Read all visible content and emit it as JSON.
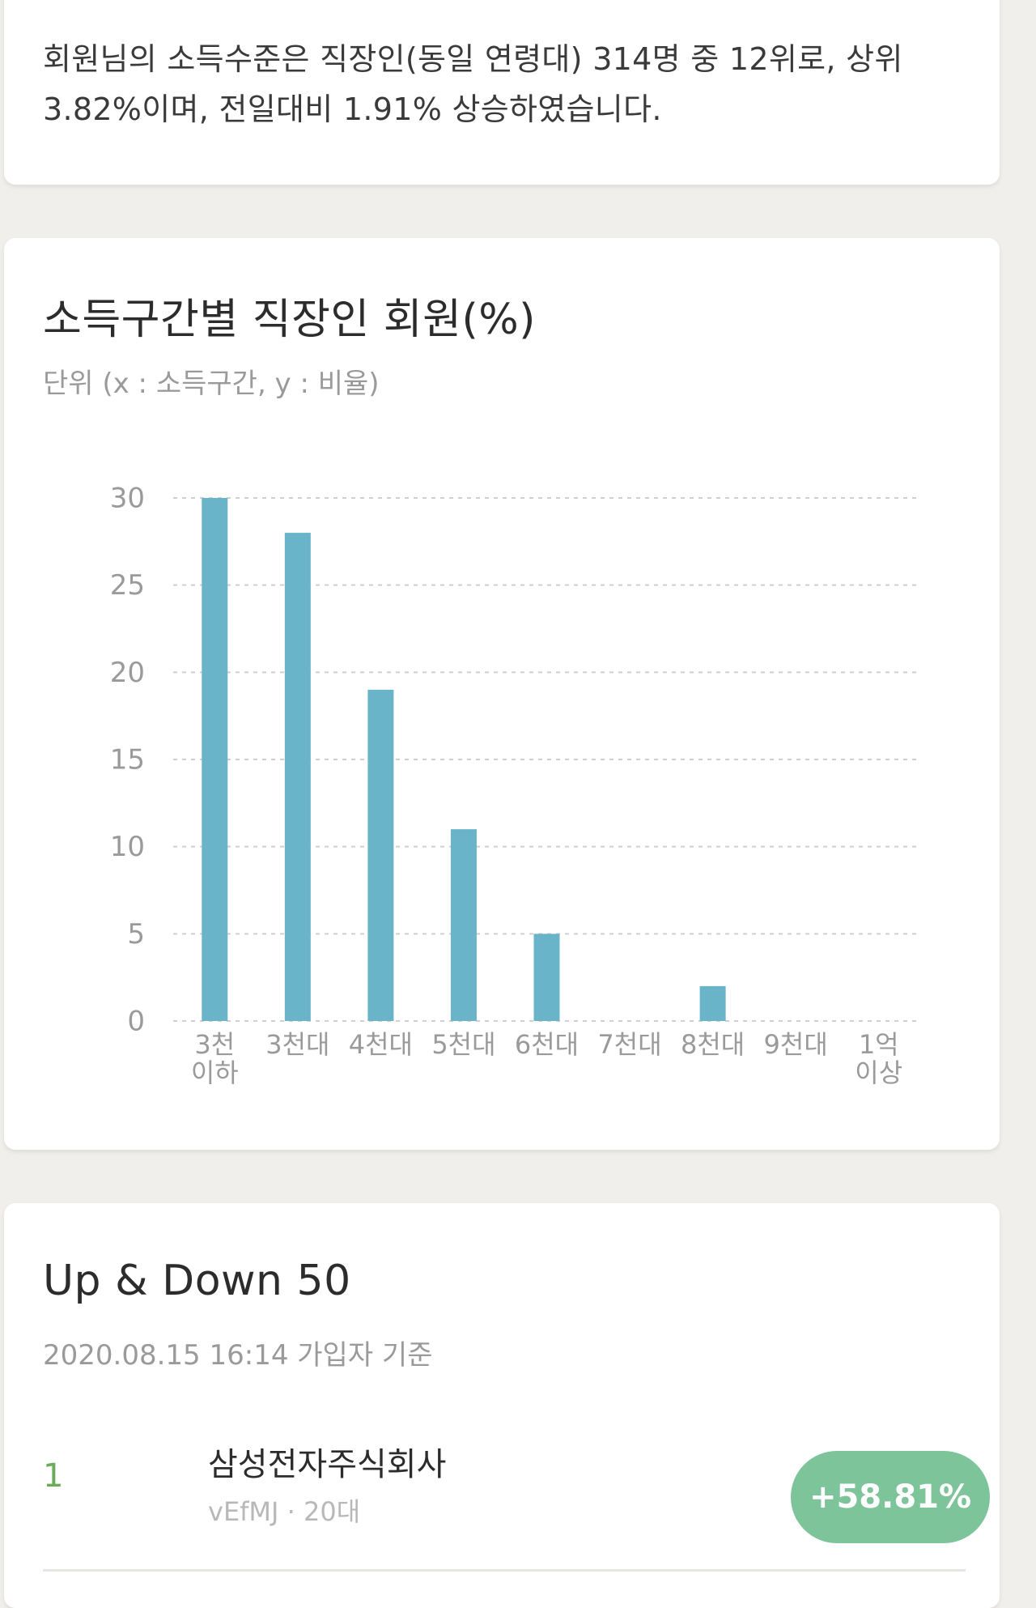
{
  "summary": {
    "text": "회원님의 소득수준은 직장인(동일 연령대) 314명 중 12위로, 상위 3.82%이며, 전일대비 1.91% 상승하였습니다."
  },
  "income_chart": {
    "title": "소득구간별 직장인 회원(%)",
    "subtitle": "단위 (x : 소득구간, y : 비율)"
  },
  "chart_data": {
    "type": "bar",
    "title": "소득구간별 직장인 회원(%)",
    "subtitle": "단위 (x : 소득구간, y : 비율)",
    "categories": [
      "3천\n이하",
      "3천대",
      "4천대",
      "5천대",
      "6천대",
      "7천대",
      "8천대",
      "9천대",
      "1억\n이상"
    ],
    "values": [
      30,
      28,
      19,
      11,
      5,
      0,
      2,
      0,
      0
    ],
    "yticks": [
      0,
      5,
      10,
      15,
      20,
      25,
      30
    ],
    "ylim": [
      0,
      30
    ],
    "grid": true,
    "bar_color": "#6ab4c9"
  },
  "updown": {
    "title": "Up & Down 50",
    "subtitle": "2020.08.15 16:14 가입자 기준",
    "items": [
      {
        "rank": "1",
        "company": "삼성전자주식회사",
        "meta": "vEfMJ · 20대",
        "change": "+58.81%"
      }
    ]
  },
  "colors": {
    "background": "#f1efec",
    "card": "#ffffff",
    "bar": "#6ab4c9",
    "rank": "#6aac5a",
    "badge": "#7dc49b"
  }
}
